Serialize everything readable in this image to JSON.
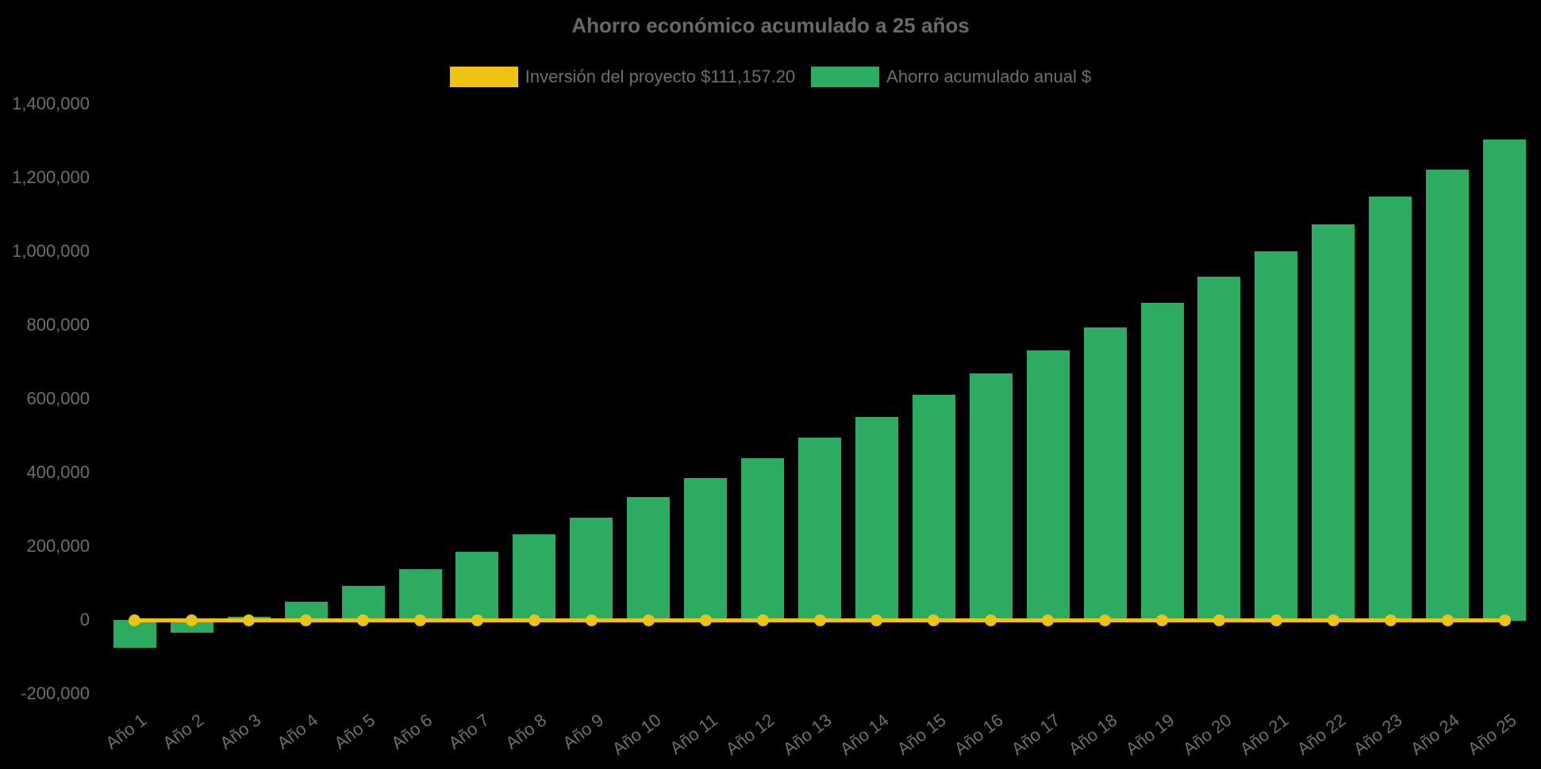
{
  "chart": {
    "title": "Ahorro económico acumulado a 25 años",
    "legend": {
      "items": [
        {
          "label": "Inversión del proyecto $111,157.20",
          "color": "#EEC313"
        },
        {
          "label": "Ahorro acumulado anual $",
          "color": "#2BAC61"
        }
      ]
    }
  },
  "chart_data": {
    "type": "bar",
    "title": "Ahorro económico acumulado a 25 años",
    "categories": [
      "Año 1",
      "Año 2",
      "Año 3",
      "Año 4",
      "Año 5",
      "Año 6",
      "Año 7",
      "Año 8",
      "Año 9",
      "Año 10",
      "Año 11",
      "Año 12",
      "Año 13",
      "Año 14",
      "Año 15",
      "Año 16",
      "Año 17",
      "Año 18",
      "Año 19",
      "Año 20",
      "Año 21",
      "Año 22",
      "Año 23",
      "Año 24",
      "Año 25"
    ],
    "series": [
      {
        "name": "Ahorro acumulado anual $",
        "type": "bar",
        "color": "#2BAC61",
        "values": [
          -75000,
          -35000,
          8000,
          50000,
          92000,
          138000,
          185000,
          232000,
          278000,
          333000,
          385000,
          439000,
          495000,
          550000,
          611000,
          669000,
          731000,
          794000,
          860000,
          931000,
          1000000,
          1073000,
          1148000,
          1222000,
          1303000
        ]
      },
      {
        "name": "Inversión del proyecto $111,157.20",
        "type": "line",
        "color": "#EEC313",
        "marker": "circle",
        "values": [
          0,
          0,
          0,
          0,
          0,
          0,
          0,
          0,
          0,
          0,
          0,
          0,
          0,
          0,
          0,
          0,
          0,
          0,
          0,
          0,
          0,
          0,
          0,
          0,
          0
        ]
      }
    ],
    "xlabel": "",
    "ylabel": "",
    "ylim": [
      -200000,
      1400000
    ],
    "y_ticks": [
      -200000,
      0,
      200000,
      400000,
      600000,
      800000,
      1000000,
      1200000,
      1400000
    ],
    "y_tick_labels": [
      "-200,000",
      "0",
      "200,000",
      "400,000",
      "600,000",
      "800,000",
      "1,000,000",
      "1,200,000",
      "1,400,000"
    ],
    "legend_position": "top",
    "grid": false,
    "background": "#000000",
    "text_color": "#6F6F6F"
  }
}
